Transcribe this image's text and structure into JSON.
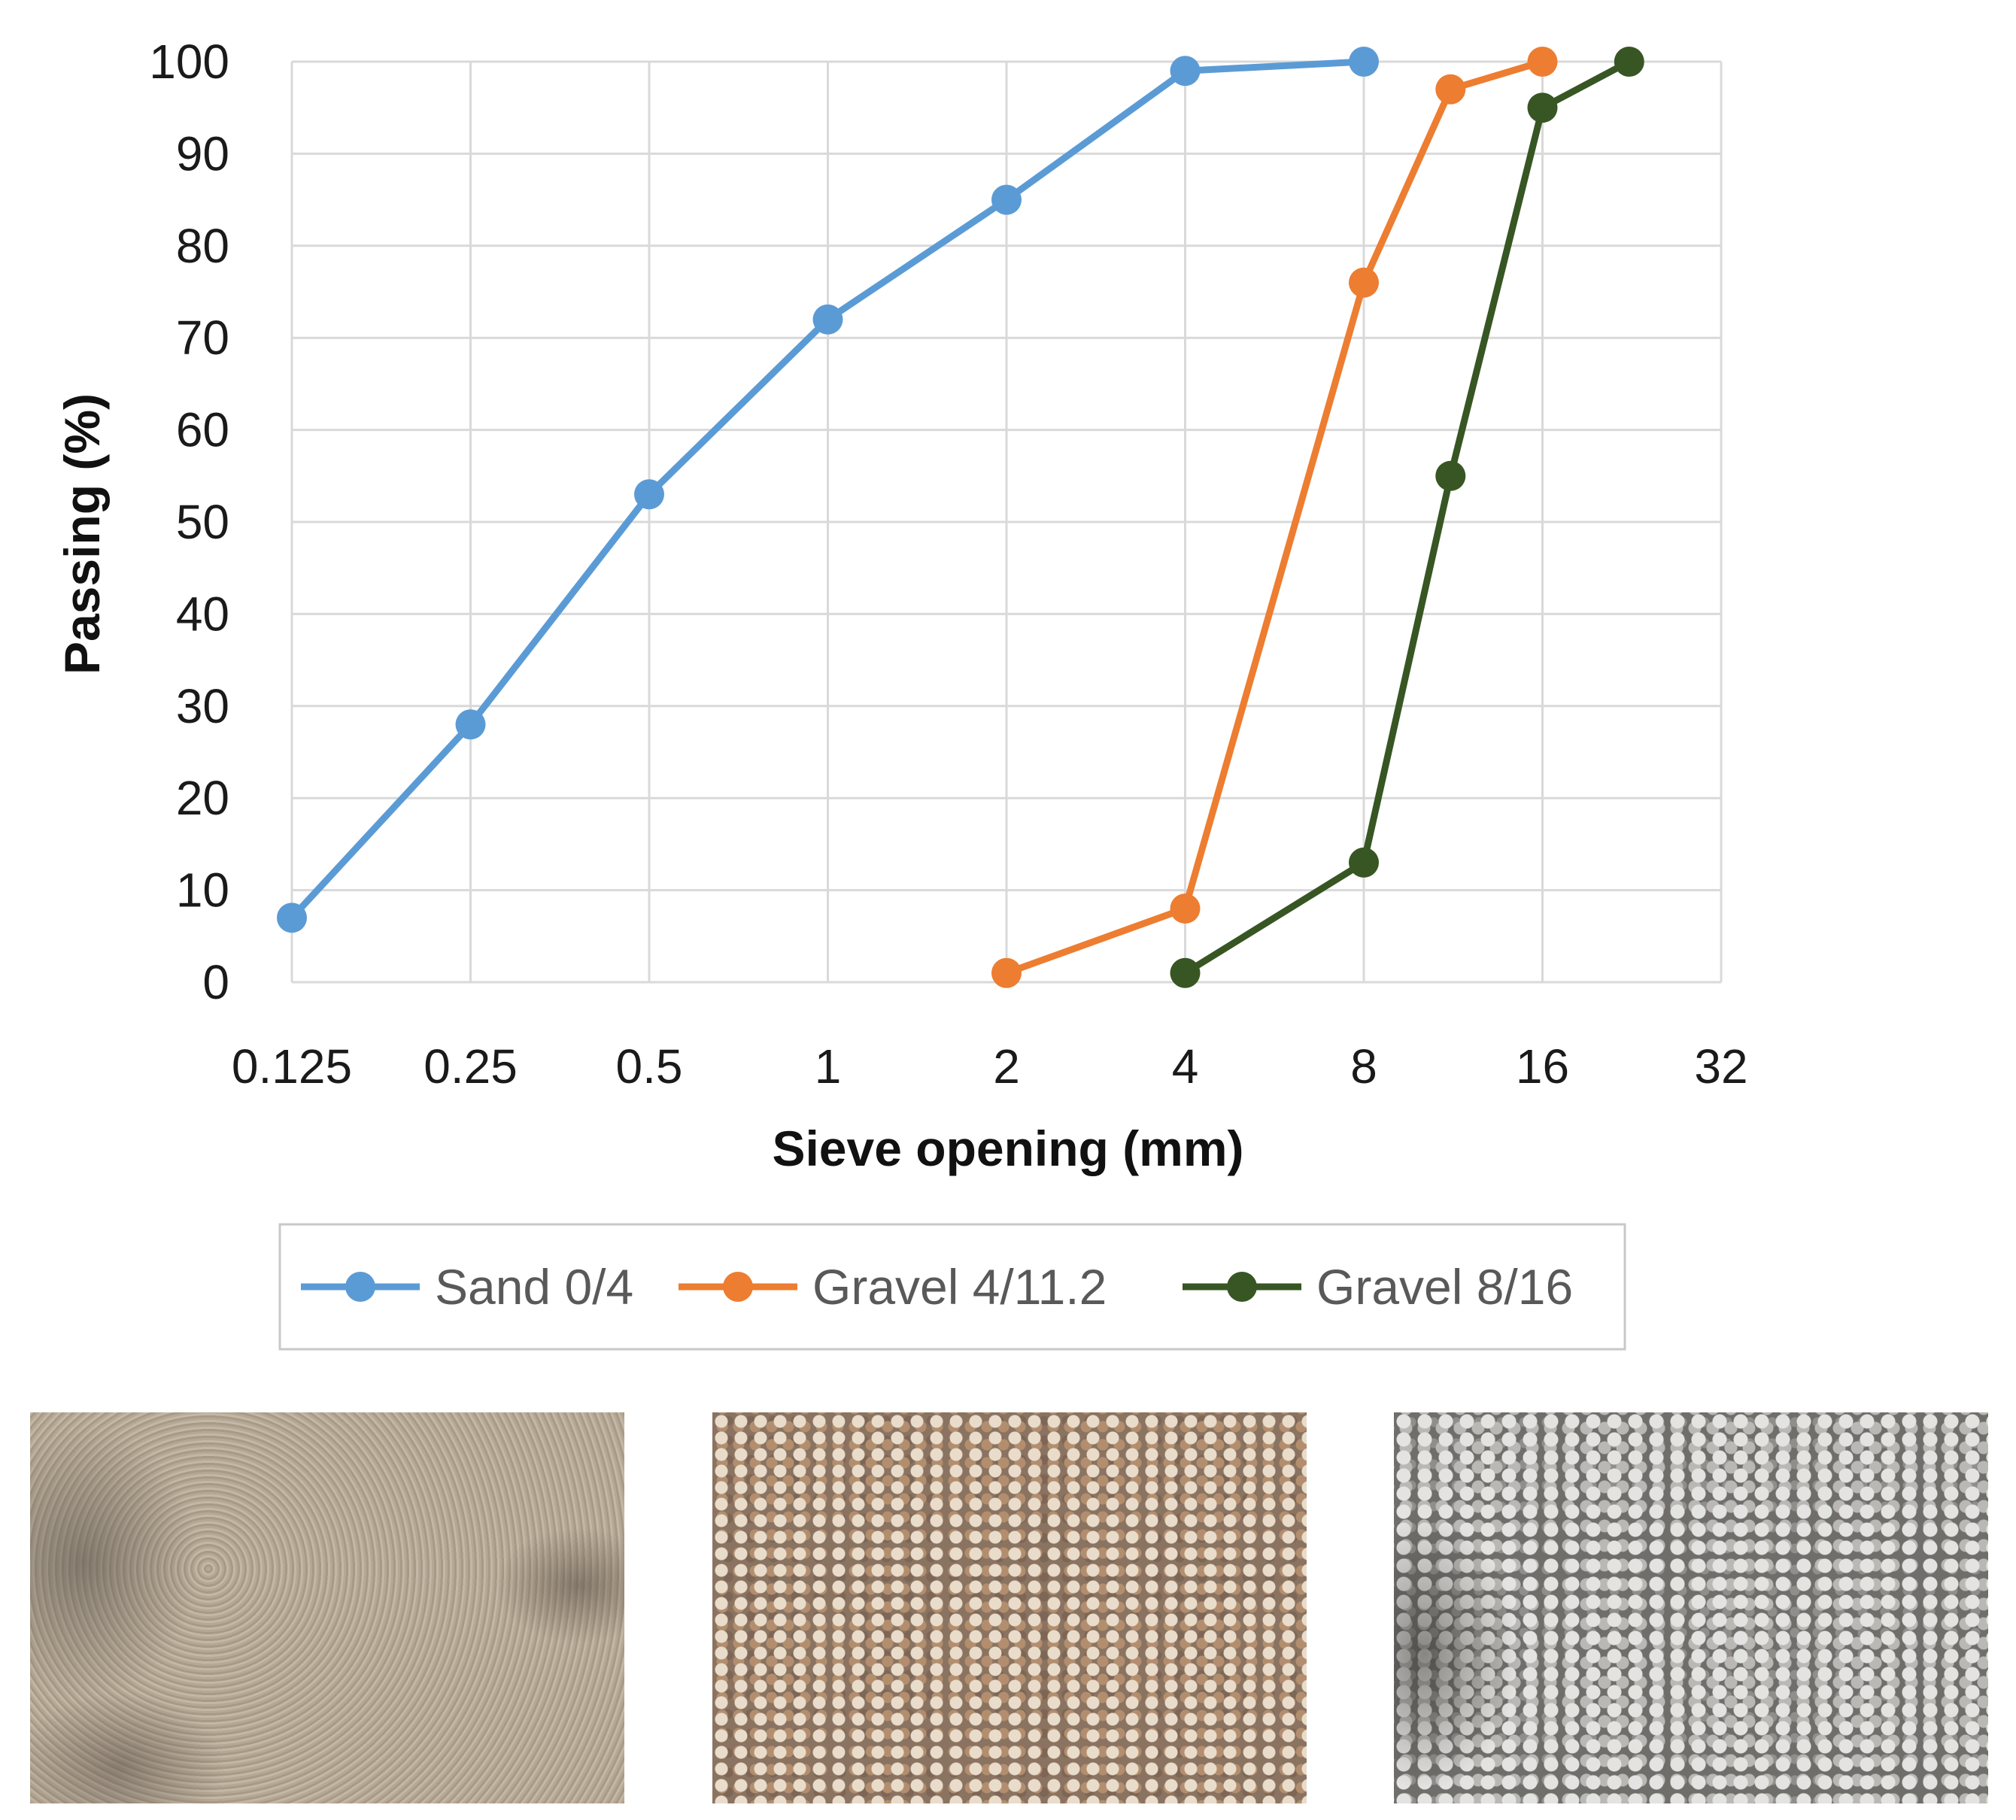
{
  "chart_data": {
    "type": "line",
    "xlabel": "Sieve opening (mm)",
    "ylabel": "Passing (%)",
    "x_scale": "log2",
    "x_ticks": [
      "0.125",
      "0.25",
      "0.5",
      "1",
      "2",
      "4",
      "8",
      "16",
      "32"
    ],
    "y_ticks": [
      "0",
      "10",
      "20",
      "30",
      "40",
      "50",
      "60",
      "70",
      "80",
      "90",
      "100"
    ],
    "xlim": [
      0.125,
      32
    ],
    "ylim": [
      0,
      100
    ],
    "grid": true,
    "legend_position": "bottom",
    "series": [
      {
        "name": "Sand 0/4",
        "color": "#5b9bd5",
        "x": [
          0.125,
          0.25,
          0.5,
          1,
          2,
          4,
          8
        ],
        "y": [
          7,
          28,
          53,
          72,
          85,
          99,
          100
        ]
      },
      {
        "name": "Gravel 4/11.2",
        "color": "#ed7d31",
        "x": [
          2,
          4,
          8,
          11.2,
          16
        ],
        "y": [
          1,
          8,
          76,
          97,
          100
        ]
      },
      {
        "name": "Gravel 8/16",
        "color": "#375623",
        "x": [
          4,
          8,
          11.2,
          16,
          22.4
        ],
        "y": [
          1,
          13,
          55,
          95,
          100
        ]
      }
    ]
  },
  "photos": [
    {
      "id": "sand",
      "subject": "sand"
    },
    {
      "id": "gravel1",
      "subject": "fine gravel"
    },
    {
      "id": "gravel2",
      "subject": "coarse gravel"
    }
  ]
}
